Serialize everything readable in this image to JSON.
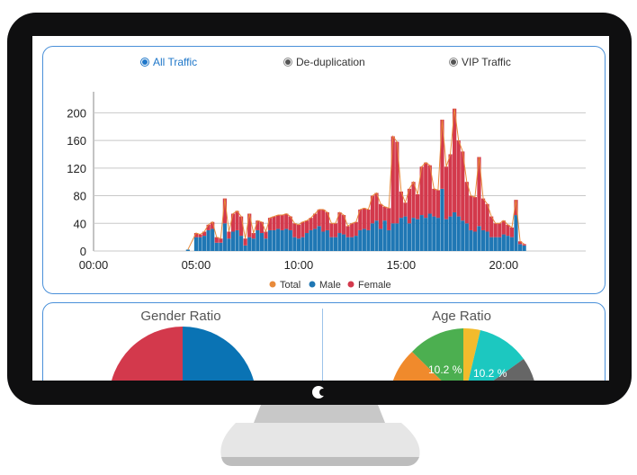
{
  "filters": [
    {
      "label": "All Traffic",
      "selected": true
    },
    {
      "label": "De-duplication",
      "selected": false
    },
    {
      "label": "VIP Traffic",
      "selected": false
    }
  ],
  "ratios": {
    "gender_title": "Gender Ratio",
    "age_title": "Age Ratio",
    "age_labels": [
      "10.2 %",
      "10.2 %"
    ]
  },
  "colors": {
    "total": "#e88a3a",
    "male": "#1f77b4",
    "female": "#d3394c",
    "accent": "#1f77c9"
  },
  "chart_data": {
    "type": "bar",
    "x_ticks": [
      "00:00",
      "05:00",
      "10:00",
      "15:00",
      "20:00"
    ],
    "ylim": [
      0,
      220
    ],
    "y_ticks": [
      0,
      40,
      80,
      120,
      160,
      200
    ],
    "legend": [
      "Total",
      "Male",
      "Female"
    ],
    "legend_position": "bottom",
    "x_hours": [
      4.6,
      5.0,
      5.2,
      5.4,
      5.6,
      5.8,
      6.0,
      6.2,
      6.4,
      6.6,
      6.8,
      7.0,
      7.2,
      7.4,
      7.6,
      7.8,
      8.0,
      8.2,
      8.4,
      8.6,
      8.8,
      9.0,
      9.2,
      9.4,
      9.6,
      9.8,
      10.0,
      10.2,
      10.4,
      10.6,
      10.8,
      11.0,
      11.2,
      11.4,
      11.6,
      11.8,
      12.0,
      12.2,
      12.4,
      12.6,
      12.8,
      13.0,
      13.2,
      13.4,
      13.6,
      13.8,
      14.0,
      14.2,
      14.4,
      14.6,
      14.8,
      15.0,
      15.2,
      15.4,
      15.6,
      15.8,
      16.0,
      16.2,
      16.4,
      16.6,
      16.8,
      17.0,
      17.2,
      17.4,
      17.6,
      17.8,
      18.0,
      18.2,
      18.4,
      18.6,
      18.8,
      19.0,
      19.2,
      19.4,
      19.6,
      19.8,
      20.0,
      20.2,
      20.4,
      20.6,
      20.8,
      21.0
    ],
    "series": [
      {
        "name": "Male",
        "values": [
          2,
          20,
          20,
          22,
          30,
          32,
          12,
          12,
          40,
          18,
          28,
          30,
          22,
          8,
          20,
          18,
          30,
          26,
          18,
          30,
          30,
          32,
          30,
          32,
          30,
          20,
          18,
          20,
          26,
          30,
          32,
          36,
          28,
          30,
          20,
          20,
          26,
          24,
          20,
          20,
          22,
          30,
          32,
          30,
          40,
          44,
          32,
          44,
          30,
          40,
          40,
          48,
          50,
          40,
          48,
          46,
          52,
          48,
          54,
          50,
          48,
          90,
          46,
          50,
          56,
          50,
          44,
          40,
          30,
          28,
          36,
          30,
          28,
          20,
          20,
          20,
          24,
          22,
          20,
          52,
          10,
          8
        ]
      },
      {
        "name": "Female",
        "values": [
          0,
          6,
          4,
          6,
          8,
          10,
          8,
          6,
          36,
          10,
          26,
          28,
          28,
          10,
          34,
          8,
          14,
          16,
          10,
          18,
          20,
          20,
          22,
          22,
          20,
          20,
          20,
          22,
          18,
          18,
          22,
          24,
          32,
          26,
          20,
          20,
          30,
          28,
          16,
          20,
          20,
          30,
          30,
          30,
          40,
          40,
          36,
          20,
          32,
          126,
          118,
          38,
          20,
          50,
          52,
          36,
          70,
          80,
          70,
          40,
          40,
          100,
          76,
          90,
          150,
          110,
          100,
          60,
          50,
          50,
          100,
          46,
          40,
          30,
          20,
          20,
          20,
          16,
          14,
          22,
          4,
          2
        ]
      }
    ]
  }
}
